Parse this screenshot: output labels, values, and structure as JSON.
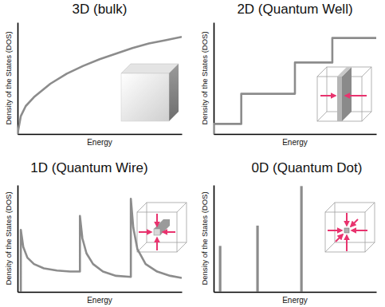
{
  "chart_data": [
    {
      "type": "line",
      "title": "3D (bulk)",
      "x_label": "Energy",
      "y_label": "Density of the States (DOS)",
      "x": [
        0,
        0.2,
        0.5,
        1,
        2,
        3,
        4,
        5,
        6,
        7,
        8,
        9,
        10
      ],
      "values": [
        0,
        1.6,
        2.5,
        3.3,
        4.5,
        5.4,
        6.1,
        6.7,
        7.2,
        7.7,
        8.1,
        8.4,
        8.7
      ],
      "xlim": [
        0,
        10
      ],
      "ylim": [
        0,
        10
      ],
      "tick_labels": false,
      "color": "#8c8c8c"
    },
    {
      "type": "line",
      "title": "2D (Quantum Well)",
      "x_label": "Energy",
      "y_label": "Density of the States (DOS)",
      "x": [
        0,
        0,
        1.7,
        1.7,
        5,
        5,
        7.3,
        7.3,
        10
      ],
      "values": [
        0,
        0.9,
        0.9,
        3.6,
        3.6,
        6.4,
        6.4,
        8.6,
        8.6
      ],
      "xlim": [
        0,
        10
      ],
      "ylim": [
        0,
        10
      ],
      "tick_labels": false,
      "color": "#8c8c8c"
    },
    {
      "type": "line",
      "title": "1D (Quantum Wire)",
      "x_label": "Energy",
      "y_label": "Density of the States (DOS)",
      "x": [
        0.2,
        0.2,
        0.35,
        0.6,
        1.0,
        1.6,
        2.4,
        3.2,
        3.8,
        3.8,
        3.95,
        4.2,
        4.6,
        5.2,
        6.0,
        6.9,
        6.9,
        7.05,
        7.3,
        7.8,
        8.5,
        9.3,
        10
      ],
      "values": [
        0,
        5.8,
        4.2,
        3.2,
        2.6,
        2.2,
        2.0,
        1.9,
        1.9,
        7.1,
        5.0,
        3.6,
        2.6,
        1.9,
        1.5,
        1.4,
        8.7,
        6.0,
        4.0,
        2.6,
        1.9,
        1.5,
        1.3
      ],
      "xlim": [
        0,
        10
      ],
      "ylim": [
        0,
        10
      ],
      "tick_labels": false,
      "color": "#8c8c8c"
    },
    {
      "type": "stem",
      "title": "0D (Quantum Dot)",
      "x_label": "Energy",
      "y_label": "Density of the States (DOS)",
      "x": [
        0.4,
        2.7,
        5.4
      ],
      "values": [
        4.3,
        6.2,
        9.9
      ],
      "xlim": [
        0,
        10
      ],
      "ylim": [
        0,
        10
      ],
      "tick_labels": false,
      "color": "#8c8c8c"
    }
  ]
}
